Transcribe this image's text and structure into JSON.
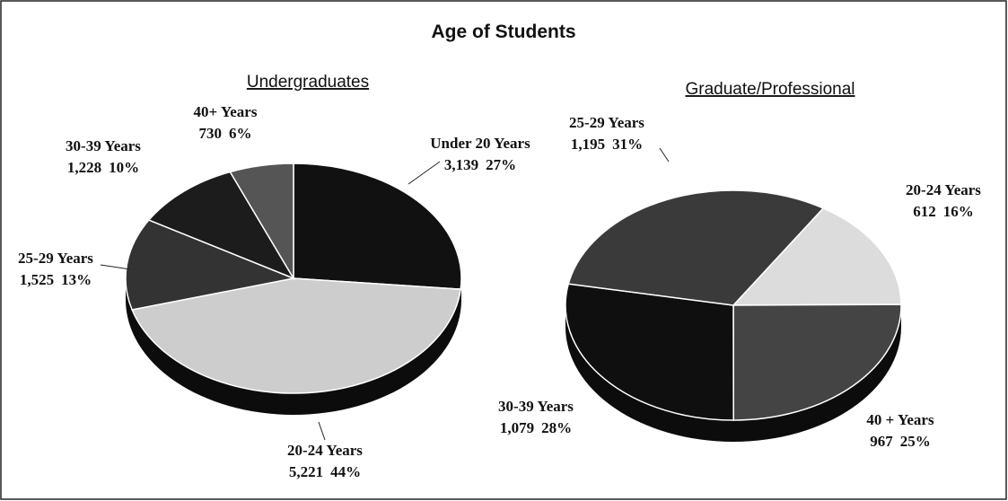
{
  "title": "Age of Students",
  "chart_data": [
    {
      "type": "pie",
      "title": "Undergraduates",
      "categories": [
        "Under 20 Years",
        "20-24 Years",
        "25-29 Years",
        "30-39 Years",
        "40+ Years"
      ],
      "values": [
        3139,
        5221,
        1525,
        1228,
        730
      ],
      "value_labels": [
        "3,139",
        "5,221",
        "1,525",
        "1,228",
        "730"
      ],
      "percent_labels": [
        "27%",
        "44%",
        "13%",
        "10%",
        "6%"
      ],
      "colors": [
        "#111111",
        "#cdcdcd",
        "#333333",
        "#1c1c1c",
        "#555555"
      ]
    },
    {
      "type": "pie",
      "title": "Graduate/Professional",
      "categories": [
        "20-24 Years",
        "40 + Years",
        "30-39 Years",
        "25-29 Years"
      ],
      "values": [
        612,
        967,
        1079,
        1195
      ],
      "value_labels": [
        "612",
        "967",
        "1,079",
        "1,195"
      ],
      "percent_labels": [
        "16%",
        "25%",
        "28%",
        "31%"
      ],
      "colors": [
        "#dcdcdc",
        "#444444",
        "#0f0f0f",
        "#3a3a3a"
      ]
    }
  ]
}
